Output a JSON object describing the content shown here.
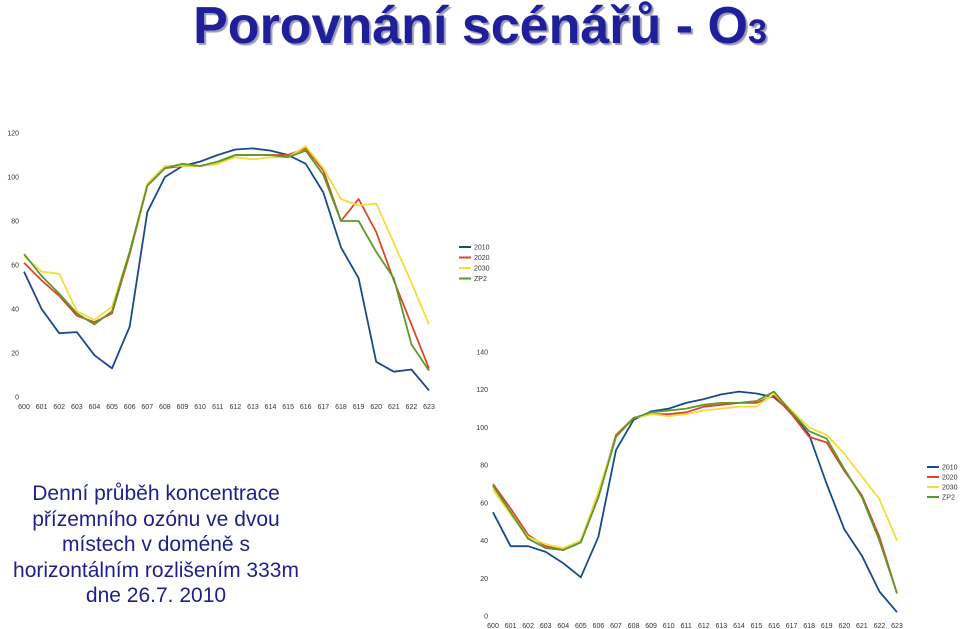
{
  "slide": {
    "title_main": "Porovnání scénářů - O",
    "title_sub": "3",
    "caption_lines": [
      "Denní průběh koncentrace",
      "přízemního ozónu ve dvou",
      "místech v doméně s",
      "horizontálním rozlišením 333m",
      "dne 26.7. 2010"
    ]
  },
  "chart_data": [
    {
      "type": "line",
      "title": "",
      "xlabel": "",
      "ylabel": "",
      "categories": [
        "600",
        "601",
        "602",
        "603",
        "604",
        "605",
        "606",
        "607",
        "608",
        "609",
        "610",
        "611",
        "612",
        "613",
        "614",
        "615",
        "616",
        "617",
        "618",
        "619",
        "620",
        "621",
        "622",
        "623"
      ],
      "ylim": [
        0,
        120
      ],
      "yticks": [
        0,
        20,
        40,
        60,
        80,
        100,
        120
      ],
      "grid": false,
      "legend_position": "right",
      "series": [
        {
          "name": "2010",
          "color": "#1a4a8a",
          "values": [
            57,
            40,
            29,
            29.5,
            19,
            13,
            32,
            84,
            100,
            105,
            107,
            110,
            112.5,
            113,
            112,
            110,
            106,
            93,
            68,
            54,
            16,
            11.5,
            12.5,
            3
          ]
        },
        {
          "name": "2020",
          "color": "#e0442a",
          "values": [
            61,
            53,
            46,
            37,
            34,
            38,
            65,
            96,
            104,
            105,
            105,
            106,
            110,
            110,
            110,
            110,
            113,
            103,
            80,
            90,
            75,
            53,
            33,
            13
          ]
        },
        {
          "name": "2030",
          "color": "#f2dd3e",
          "values": [
            64,
            57,
            56,
            39,
            35,
            41,
            66,
            97,
            105,
            105,
            105,
            106,
            109,
            108,
            109,
            109,
            114,
            104,
            90,
            87,
            88,
            70,
            52,
            33
          ]
        },
        {
          "name": "ZP2",
          "color": "#5a9a2a",
          "values": [
            65,
            55,
            47,
            38,
            33,
            39,
            66,
            96,
            104,
            106,
            105,
            107,
            110,
            110,
            110,
            109,
            112,
            101,
            80,
            80,
            66,
            54,
            24,
            12
          ]
        }
      ]
    },
    {
      "type": "line",
      "title": "",
      "xlabel": "",
      "ylabel": "",
      "categories": [
        "600",
        "601",
        "602",
        "603",
        "604",
        "605",
        "606",
        "607",
        "608",
        "609",
        "610",
        "611",
        "612",
        "613",
        "614",
        "615",
        "616",
        "617",
        "618",
        "619",
        "620",
        "621",
        "622",
        "623"
      ],
      "ylim": [
        0,
        140
      ],
      "yticks": [
        0,
        20,
        40,
        60,
        80,
        100,
        120,
        140
      ],
      "grid": false,
      "legend_position": "right",
      "series": [
        {
          "name": "2010",
          "color": "#1a4a8a",
          "values": [
            55,
            37,
            37,
            34,
            28,
            20.5,
            42,
            88,
            104,
            108.5,
            110,
            113,
            115,
            117.5,
            119,
            118,
            116,
            108,
            96,
            70,
            46,
            32,
            13,
            2
          ]
        },
        {
          "name": "2020",
          "color": "#e0442a",
          "values": [
            70,
            57,
            43,
            37,
            35,
            40,
            65,
            96,
            105,
            107,
            107,
            108,
            111,
            112,
            113,
            113,
            117,
            107,
            95,
            92,
            77,
            64,
            42,
            12
          ]
        },
        {
          "name": "2030",
          "color": "#f2dd3e",
          "values": [
            67,
            54,
            42,
            38,
            36,
            40,
            66,
            95,
            105,
            107,
            106,
            107,
            109,
            110,
            111,
            111,
            118,
            109,
            100,
            96,
            86,
            74,
            62,
            40
          ]
        },
        {
          "name": "ZP2",
          "color": "#5a9a2a",
          "values": [
            69,
            55,
            41,
            36,
            35,
            39,
            63,
            95,
            105,
            108,
            109,
            110,
            112,
            113,
            113,
            114,
            119,
            108,
            98,
            94,
            78,
            63,
            40,
            12
          ]
        }
      ]
    }
  ]
}
